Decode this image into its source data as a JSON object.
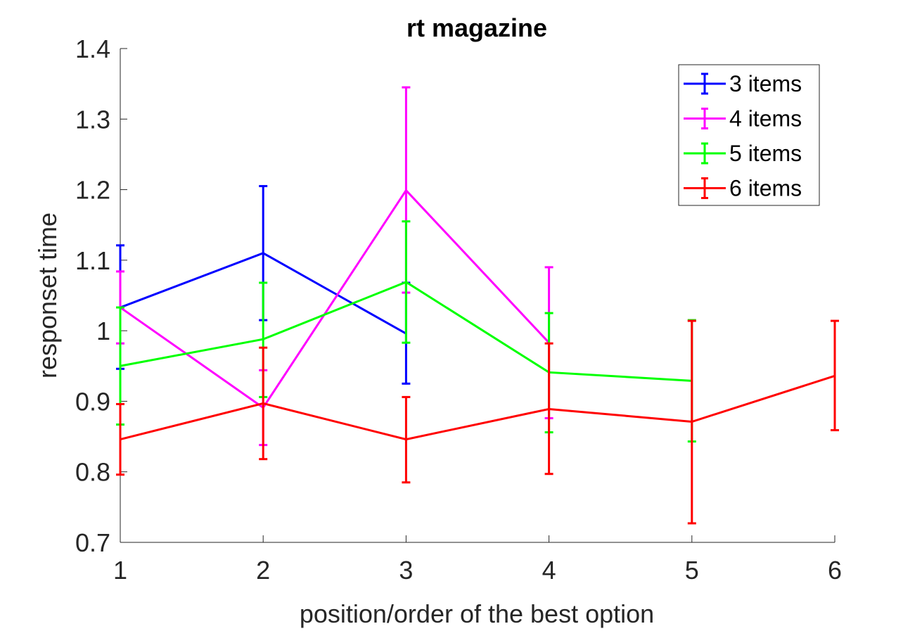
{
  "chart_data": {
    "type": "line",
    "title": "rt magazine",
    "xlabel": "position/order of the best option",
    "ylabel": "responset time",
    "xlim": [
      1,
      6
    ],
    "ylim": [
      0.7,
      1.4
    ],
    "xticks": [
      "1",
      "2",
      "3",
      "4",
      "5",
      "6"
    ],
    "yticks": [
      "0.7",
      "0.8",
      "0.9",
      "1",
      "1.1",
      "1.2",
      "1.3",
      "1.4"
    ],
    "grid": false,
    "legend_position": "top-right",
    "series": [
      {
        "name": "3 items",
        "color": "#0000ff",
        "x": [
          1,
          2,
          3
        ],
        "y": [
          1.033,
          1.11,
          0.996
        ],
        "err_low": [
          0.946,
          1.015,
          0.925
        ],
        "err_high": [
          1.121,
          1.205,
          1.068
        ]
      },
      {
        "name": "4 items",
        "color": "#ff00ff",
        "x": [
          1,
          2,
          3,
          4
        ],
        "y": [
          1.033,
          0.891,
          1.199,
          0.983
        ],
        "err_low": [
          0.982,
          0.838,
          1.054,
          0.876
        ],
        "err_high": [
          1.084,
          0.944,
          1.345,
          1.09
        ]
      },
      {
        "name": "5 items",
        "color": "#00ff00",
        "x": [
          1,
          2,
          3,
          4,
          5
        ],
        "y": [
          0.95,
          0.988,
          1.069,
          0.941,
          0.929
        ],
        "err_low": [
          0.867,
          0.906,
          0.983,
          0.856,
          0.843
        ],
        "err_high": [
          1.033,
          1.068,
          1.155,
          1.025,
          1.015
        ]
      },
      {
        "name": "6 items",
        "color": "#ff0000",
        "x": [
          1,
          2,
          3,
          4,
          5,
          6
        ],
        "y": [
          0.846,
          0.897,
          0.846,
          0.889,
          0.871,
          0.936
        ],
        "err_low": [
          0.796,
          0.818,
          0.785,
          0.797,
          0.727,
          0.859
        ],
        "err_high": [
          0.896,
          0.976,
          0.906,
          0.982,
          1.014,
          1.014
        ]
      }
    ]
  }
}
